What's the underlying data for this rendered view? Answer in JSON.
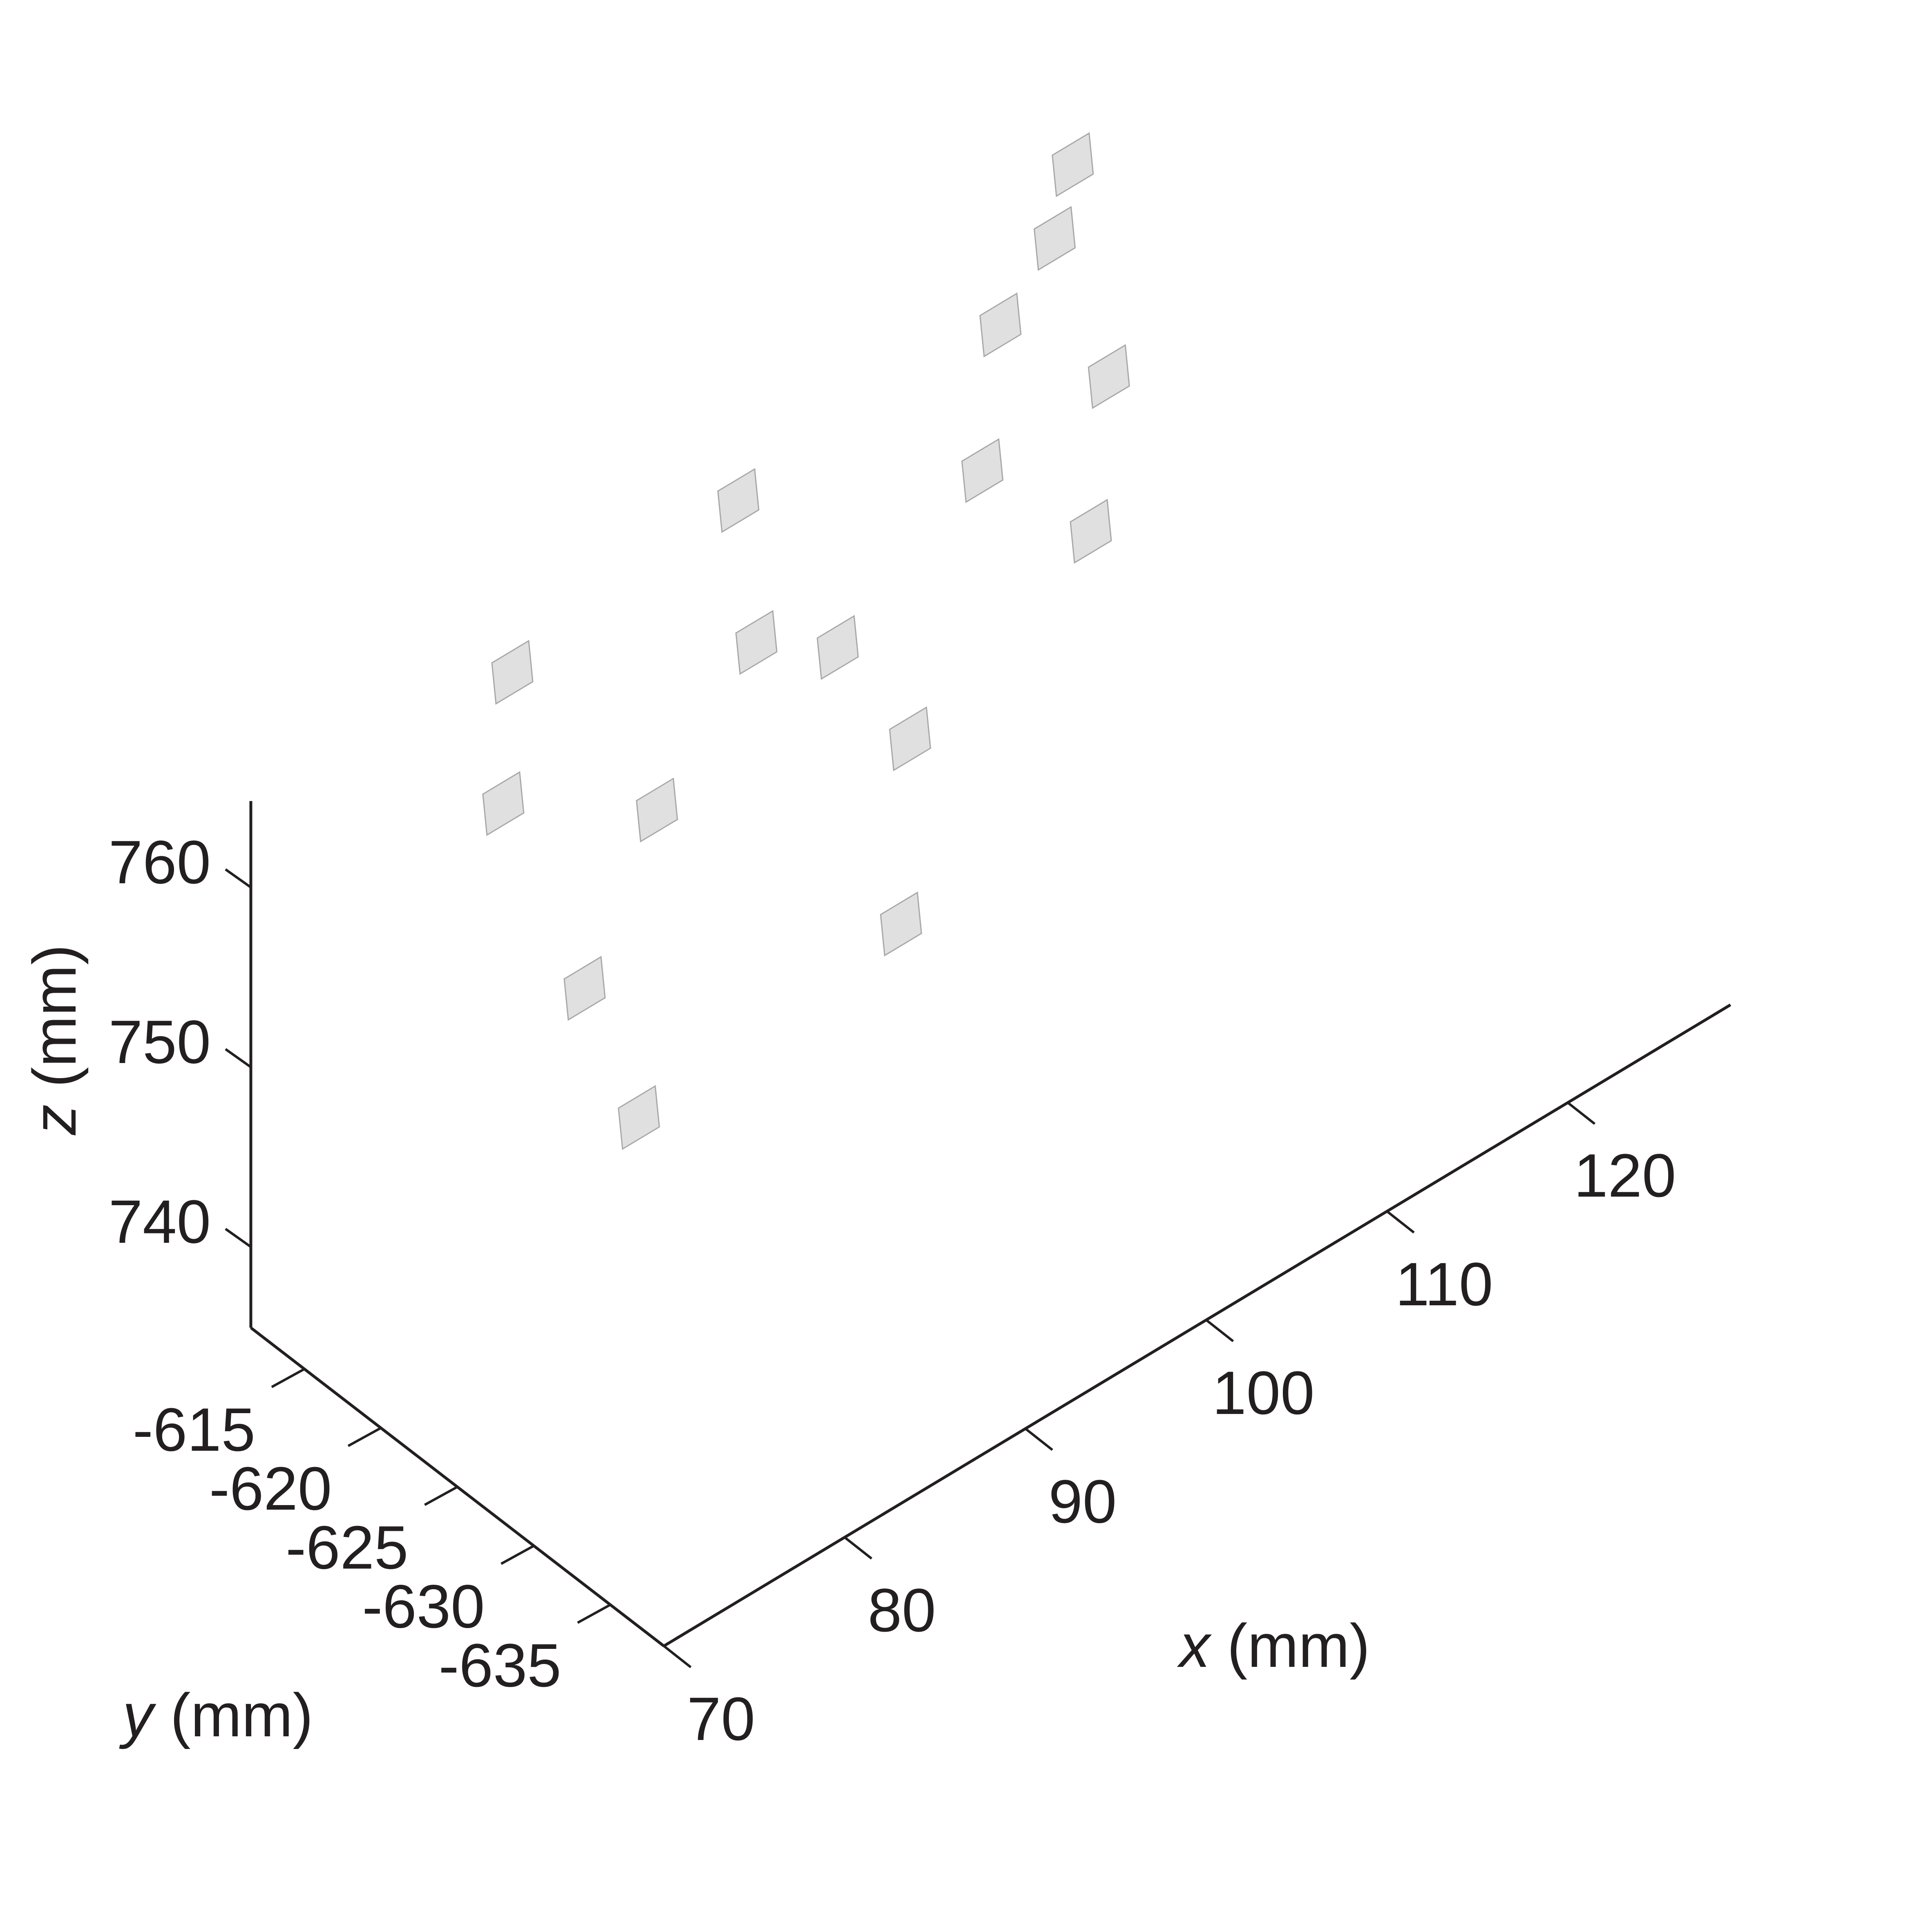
{
  "chart_data": {
    "type": "scatter3d",
    "axes": {
      "x": {
        "title_var": "x",
        "title_unit": "(mm)",
        "ticks": [
          70,
          80,
          90,
          100,
          110,
          120
        ],
        "range": [
          70,
          129
        ]
      },
      "y": {
        "title_var": "y",
        "title_unit": "(mm)",
        "ticks": [
          -615,
          -620,
          -625,
          -630,
          -635
        ],
        "range": [
          -611.5,
          -638.5
        ]
      },
      "z": {
        "title_var": "z",
        "title_unit": "(mm)",
        "ticks": [
          740,
          750,
          760
        ],
        "range": [
          735.5,
          764.8
        ]
      }
    },
    "marker": "square",
    "marker_color": "#e0e0e0",
    "marker_edge_color": "#a8a8a8",
    "axis_color": "#231f20",
    "grid": false,
    "points": [
      {
        "x": 85.0,
        "y": -611.0,
        "z": 761.0
      },
      {
        "x": 97.5,
        "y": -611.0,
        "z": 763.0
      },
      {
        "x": 112.0,
        "y": -611.0,
        "z": 764.0
      },
      {
        "x": 115.0,
        "y": -611.0,
        "z": 767.0
      },
      {
        "x": 116.0,
        "y": -611.0,
        "z": 770.5
      },
      {
        "x": 84.5,
        "y": -611.0,
        "z": 754.0
      },
      {
        "x": 98.5,
        "y": -611.0,
        "z": 754.5
      },
      {
        "x": 111.0,
        "y": -611.0,
        "z": 756.5
      },
      {
        "x": 93.0,
        "y": -611.0,
        "z": 748.5
      },
      {
        "x": 103.0,
        "y": -611.0,
        "z": 751.5
      },
      {
        "x": 118.0,
        "y": -611.0,
        "z": 757.5
      },
      {
        "x": 89.0,
        "y": -611.0,
        "z": 741.0
      },
      {
        "x": 107.0,
        "y": -611.0,
        "z": 744.0
      },
      {
        "x": 117.0,
        "y": -611.0,
        "z": 749.5
      },
      {
        "x": 92.0,
        "y": -611.0,
        "z": 732.0
      },
      {
        "x": 106.5,
        "y": -611.0,
        "z": 734.0
      }
    ]
  }
}
